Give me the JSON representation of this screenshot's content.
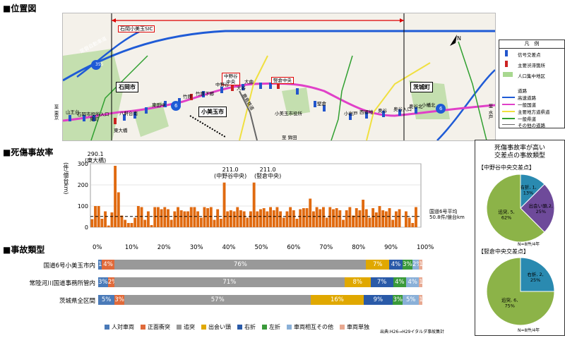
{
  "sections": {
    "location": "■位置図",
    "fatality": "■死傷事故率",
    "types": "■事故類型"
  },
  "map": {
    "target_section": "対象区間",
    "labels": {
      "ishioka_sic": "石岡小美玉SIC",
      "ishioka_city": "石岡市",
      "omitama_city": "小美玉市",
      "ibarakimachi": "茨城町",
      "joban": "常磐自動車道",
      "route355": "355",
      "route6a": "6",
      "route6b": "6",
      "to_mito": "至 水戸",
      "to_tokyo": "至 東京",
      "to_hokota": "至 鉾田",
      "nakanoya": "中野谷\n中央",
      "kendo_chuo": "竪倉中央",
      "hokota_line": "鹿島鉄道"
    },
    "intersections": [
      "山王台",
      "石岡市役所入口",
      "東町",
      "八軒台南",
      "東大橋",
      "東田中",
      "竹原",
      "竹原下郷",
      "中野谷",
      "大谷",
      "大曲",
      "小美玉市役所",
      "堅倉",
      "小岩戸",
      "西郷地",
      "奥谷",
      "奥谷入口",
      "奥谷北",
      "小幡北"
    ],
    "legend": {
      "title": "凡　例",
      "items": [
        {
          "label": "信号交差点",
          "color": "#2255cc"
        },
        {
          "label": "主要渋滞箇所",
          "color": "#cc2222"
        },
        {
          "label": "人口集中地区",
          "color": "#a8d890"
        }
      ],
      "roads_title": "道路",
      "roads": [
        {
          "label": "高速道路",
          "color": "#1f5bd6"
        },
        {
          "label": "一般国道",
          "color": "#e040c8"
        },
        {
          "label": "主要地方道県道",
          "color": "#f0e040"
        },
        {
          "label": "一般県道",
          "color": "#30a030"
        },
        {
          "label": "その他の道路",
          "color": "#666666"
        }
      ]
    }
  },
  "chart_data": [
    {
      "type": "bar",
      "ylabel": "(件/億台km)",
      "ylim": [
        0,
        300
      ],
      "yticks": [
        0,
        100,
        200,
        300
      ],
      "xlim": [
        0,
        100
      ],
      "x_units": "% of section",
      "color": "#e06a10",
      "values": [
        38,
        100,
        100,
        40,
        75,
        8,
        70,
        290.1,
        165,
        55,
        35,
        20,
        20,
        45,
        100,
        95,
        35,
        75,
        10,
        95,
        95,
        85,
        95,
        85,
        35,
        75,
        95,
        80,
        75,
        75,
        95,
        95,
        75,
        45,
        95,
        90,
        95,
        35,
        85,
        40,
        211.0,
        75,
        80,
        75,
        95,
        80,
        75,
        45,
        75,
        211.0,
        75,
        85,
        90,
        75,
        95,
        80,
        95,
        75,
        45,
        75,
        95,
        80,
        40,
        85,
        90,
        90,
        135,
        75,
        95,
        85,
        95,
        45,
        95,
        85,
        90,
        80,
        35,
        80,
        95,
        55,
        90,
        80,
        130,
        85,
        45,
        90,
        70,
        100,
        80,
        75,
        90,
        35,
        75,
        85,
        0,
        75,
        45,
        20,
        95,
        0
      ],
      "reference_line": {
        "value": 50.8,
        "label": "国道6号平均\n50.8件/億台km"
      },
      "annotations": [
        {
          "text": "290.1\n(東大橋)",
          "value": 290.1
        },
        {
          "text": "211.0\n(中野谷中央)",
          "value": 211.0
        },
        {
          "text": "211.0\n(竪倉中央)",
          "value": 211.0
        }
      ]
    },
    {
      "type": "bar",
      "orientation": "horizontal-stacked-percent",
      "axis_ticks": [
        "0%",
        "10%",
        "20%",
        "30%",
        "40%",
        "50%",
        "60%",
        "70%",
        "80%",
        "90%",
        "100%"
      ],
      "categories": [
        "国道6号小美玉市内",
        "常陸河川国道事務所管内",
        "茨城県全区間"
      ],
      "series": [
        {
          "name": "人対車両",
          "color": "#4a7ab8",
          "values": [
            1,
            3,
            5
          ],
          "labels": [
            "1%",
            "3%",
            "5%"
          ]
        },
        {
          "name": "正面衝突",
          "color": "#e06a3a",
          "values": [
            4,
            2,
            3
          ],
          "labels": [
            "4%",
            "2%",
            "3%"
          ]
        },
        {
          "name": "追突",
          "color": "#999999",
          "values": [
            76,
            71,
            57
          ],
          "labels": [
            "76%",
            "71%",
            "57%"
          ]
        },
        {
          "name": "出会い頭",
          "color": "#e0a800",
          "values": [
            7,
            8,
            16
          ],
          "labels": [
            "7%",
            "8%",
            "16%"
          ]
        },
        {
          "name": "右折",
          "color": "#2a5aa8",
          "values": [
            4,
            7,
            9
          ],
          "labels": [
            "4%",
            "7%",
            "9%"
          ]
        },
        {
          "name": "左折",
          "color": "#3a9a3a",
          "values": [
            3,
            4,
            3
          ],
          "labels": [
            "3%",
            "4%",
            "3%"
          ]
        },
        {
          "name": "車両相互その他",
          "color": "#8ab0d8",
          "values": [
            2,
            4,
            5
          ],
          "labels": [
            "2%",
            "4%",
            "5%"
          ]
        },
        {
          "name": "車両単独",
          "color": "#e8a890",
          "values": [
            1,
            1,
            1
          ],
          "labels": [
            "1%",
            "1%",
            "1%"
          ]
        }
      ],
      "source": "出典:H26→H29イタルダ事故集計"
    },
    {
      "type": "pie",
      "title": "【中野谷中央交差点】",
      "slices": [
        {
          "name": "追突",
          "value": 5,
          "pct": 62,
          "label": "追突, 5,\n62%",
          "color": "#8cb348"
        },
        {
          "name": "出会い頭",
          "value": 2,
          "pct": 25,
          "label": "出会い頭,2,\n25%",
          "color": "#6e4a9a"
        },
        {
          "name": "右折",
          "value": 1,
          "pct": 13,
          "label": "右折, 1,\n13%",
          "color": "#2a8ab0"
        }
      ],
      "note": "N=8件/4年"
    },
    {
      "type": "pie",
      "title": "【竪倉中央交差点】",
      "slices": [
        {
          "name": "追突",
          "value": 6,
          "pct": 75,
          "label": "追突, 6,\n75%",
          "color": "#8cb348"
        },
        {
          "name": "右折",
          "value": 2,
          "pct": 25,
          "label": "右折, 2,\n25%",
          "color": "#2a8ab0"
        }
      ],
      "note": "N=8件/4年"
    }
  ],
  "right_panel": {
    "title": "死傷事故率が高い\n交差点の事故類型"
  }
}
